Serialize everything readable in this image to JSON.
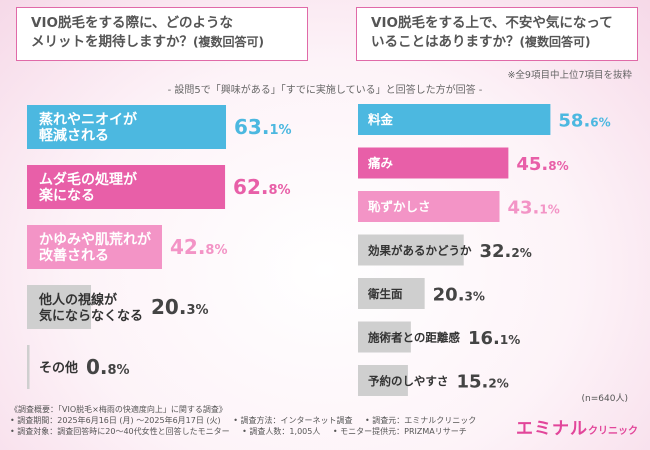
{
  "left_title": {
    "line1": "VIO脱毛をする際に、どのような",
    "line2": "メリットを期待しますか？",
    "suffix": "(複数回答可)"
  },
  "right_title": {
    "line1": "VIO脱毛をする上で、不安や気になって",
    "line2": "いることはありますか？",
    "suffix": "(複数回答可)"
  },
  "note_right": "※全9項目中上位7項目を抜粋",
  "subtitle": "- 設問5で「興味がある」「すでに実施している」と回答した方が回答 -",
  "n_note": "(n=640人)",
  "colors": {
    "cyan": "#4cb8e0",
    "pink": "#e85fa8",
    "lightpink": "#f394c6",
    "gray": "#cfcfcf",
    "border": "#e06aa8"
  },
  "chart_data": [
    {
      "type": "bar",
      "orientation": "horizontal",
      "title": "VIO脱毛をする際に、どのようなメリットを期待しますか？(複数回答可)",
      "unit": "%",
      "categories": [
        [
          "蒸れやニオイが",
          "軽減される"
        ],
        [
          "ムダ毛の処理が",
          "楽になる"
        ],
        [
          "かゆみや肌荒れが",
          "改善される"
        ],
        [
          "他人の視線が",
          "気にならなくなる"
        ],
        [
          "その他"
        ]
      ],
      "values": [
        63.1,
        62.8,
        42.8,
        20.3,
        0.8
      ],
      "value_labels": [
        [
          "63.",
          "1%"
        ],
        [
          "62.",
          "8%"
        ],
        [
          "42.",
          "8%"
        ],
        [
          "20.",
          "3%"
        ],
        [
          "0.",
          "8%"
        ]
      ],
      "bar_colors": [
        "cyan",
        "pink",
        "lightpink",
        "gray",
        "gray"
      ],
      "xlim": [
        0,
        65
      ]
    },
    {
      "type": "bar",
      "orientation": "horizontal",
      "title": "VIO脱毛をする上で、不安や気になっていることはありますか？(複数回答可)",
      "unit": "%",
      "categories": [
        [
          "料金"
        ],
        [
          "痛み"
        ],
        [
          "恥ずかしさ"
        ],
        [
          "効果があるかどうか"
        ],
        [
          "衛生面"
        ],
        [
          "施術者との距離感"
        ],
        [
          "予約のしやすさ"
        ]
      ],
      "values": [
        58.6,
        45.8,
        43.1,
        32.2,
        20.3,
        16.1,
        15.2
      ],
      "value_labels": [
        [
          "58.",
          "6%"
        ],
        [
          "45.",
          "8%"
        ],
        [
          "43.",
          "1%"
        ],
        [
          "32.",
          "2%"
        ],
        [
          "20.",
          "3%"
        ],
        [
          "16.",
          "1%"
        ],
        [
          "15.",
          "2%"
        ]
      ],
      "bar_colors": [
        "cyan",
        "pink",
        "lightpink",
        "gray",
        "gray",
        "gray",
        "gray"
      ],
      "xlim": [
        0,
        60
      ]
    }
  ],
  "footer": {
    "line1": "《調査概要：「VIO脱毛×梅雨の快適度向上」に関する調査》",
    "period": "• 調査期間：2025年6月16日 (月) ～2025年6月17日 (火)",
    "method": "• 調査方法：インターネット調査",
    "client": "• 調査元：エミナルクリニック",
    "target": "• 調査対象：調査回答時に20～40代女性と回答したモニター",
    "count": "• 調査人数：1,005人",
    "provider": "• モニター提供元：PRIZMAリサーチ"
  },
  "logo": {
    "main": "エミナル",
    "sub": "クリニック"
  }
}
